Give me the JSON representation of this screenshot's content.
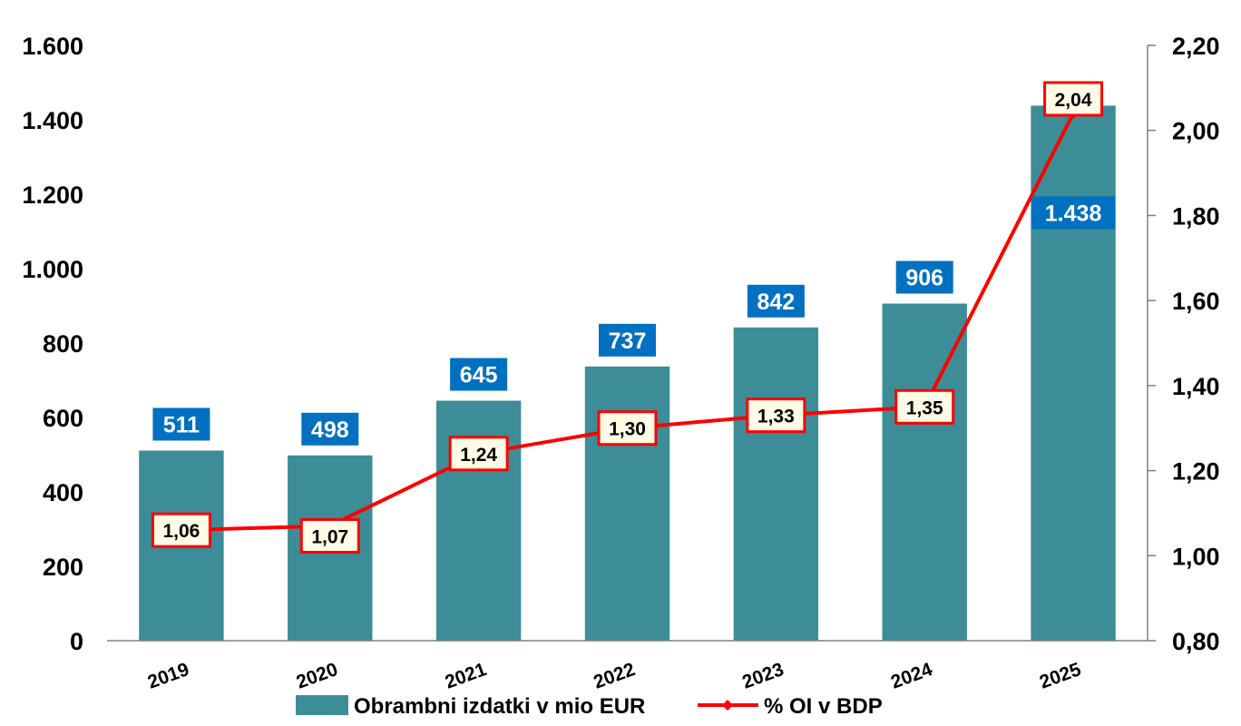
{
  "colors": {
    "bar": "#3c8d97",
    "bar_label_bg": "#0070c0",
    "line": "#ff0000",
    "line_label_bg": "#fffbe6"
  },
  "chart_data": {
    "type": "bar",
    "categories": [
      "2019",
      "2020",
      "2021",
      "2022",
      "2023",
      "2024",
      "2025"
    ],
    "series": [
      {
        "name": "Obrambni izdatki v mio EUR",
        "type": "bar",
        "axis": "left",
        "values": [
          511,
          498,
          645,
          737,
          842,
          906,
          1438
        ],
        "labels": [
          "511",
          "498",
          "645",
          "737",
          "842",
          "906",
          "1.438"
        ]
      },
      {
        "name": "% OI v BDP",
        "type": "line",
        "axis": "right",
        "values": [
          1.06,
          1.07,
          1.24,
          1.3,
          1.33,
          1.35,
          2.04
        ],
        "labels": [
          "1,06",
          "1,07",
          "1,24",
          "1,30",
          "1,33",
          "1,35",
          "2,04"
        ]
      }
    ],
    "y_left": {
      "ylim": [
        0,
        1600
      ],
      "ticks": [
        0,
        200,
        400,
        600,
        800,
        1000,
        1200,
        1400,
        1600
      ],
      "tick_labels": [
        "0",
        "200",
        "400",
        "600",
        "800",
        "1.000",
        "1.200",
        "1.400",
        "1.600"
      ]
    },
    "y_right": {
      "ylim": [
        0.8,
        2.2
      ],
      "ticks": [
        0.8,
        1.0,
        1.2,
        1.4,
        1.6,
        1.8,
        2.0,
        2.2
      ],
      "tick_labels": [
        "0,80",
        "1,00",
        "1,20",
        "1,40",
        "1,60",
        "1,80",
        "2,00",
        "2,20"
      ]
    },
    "title": "",
    "xlabel": "",
    "grid": false,
    "legend_position": "bottom"
  }
}
